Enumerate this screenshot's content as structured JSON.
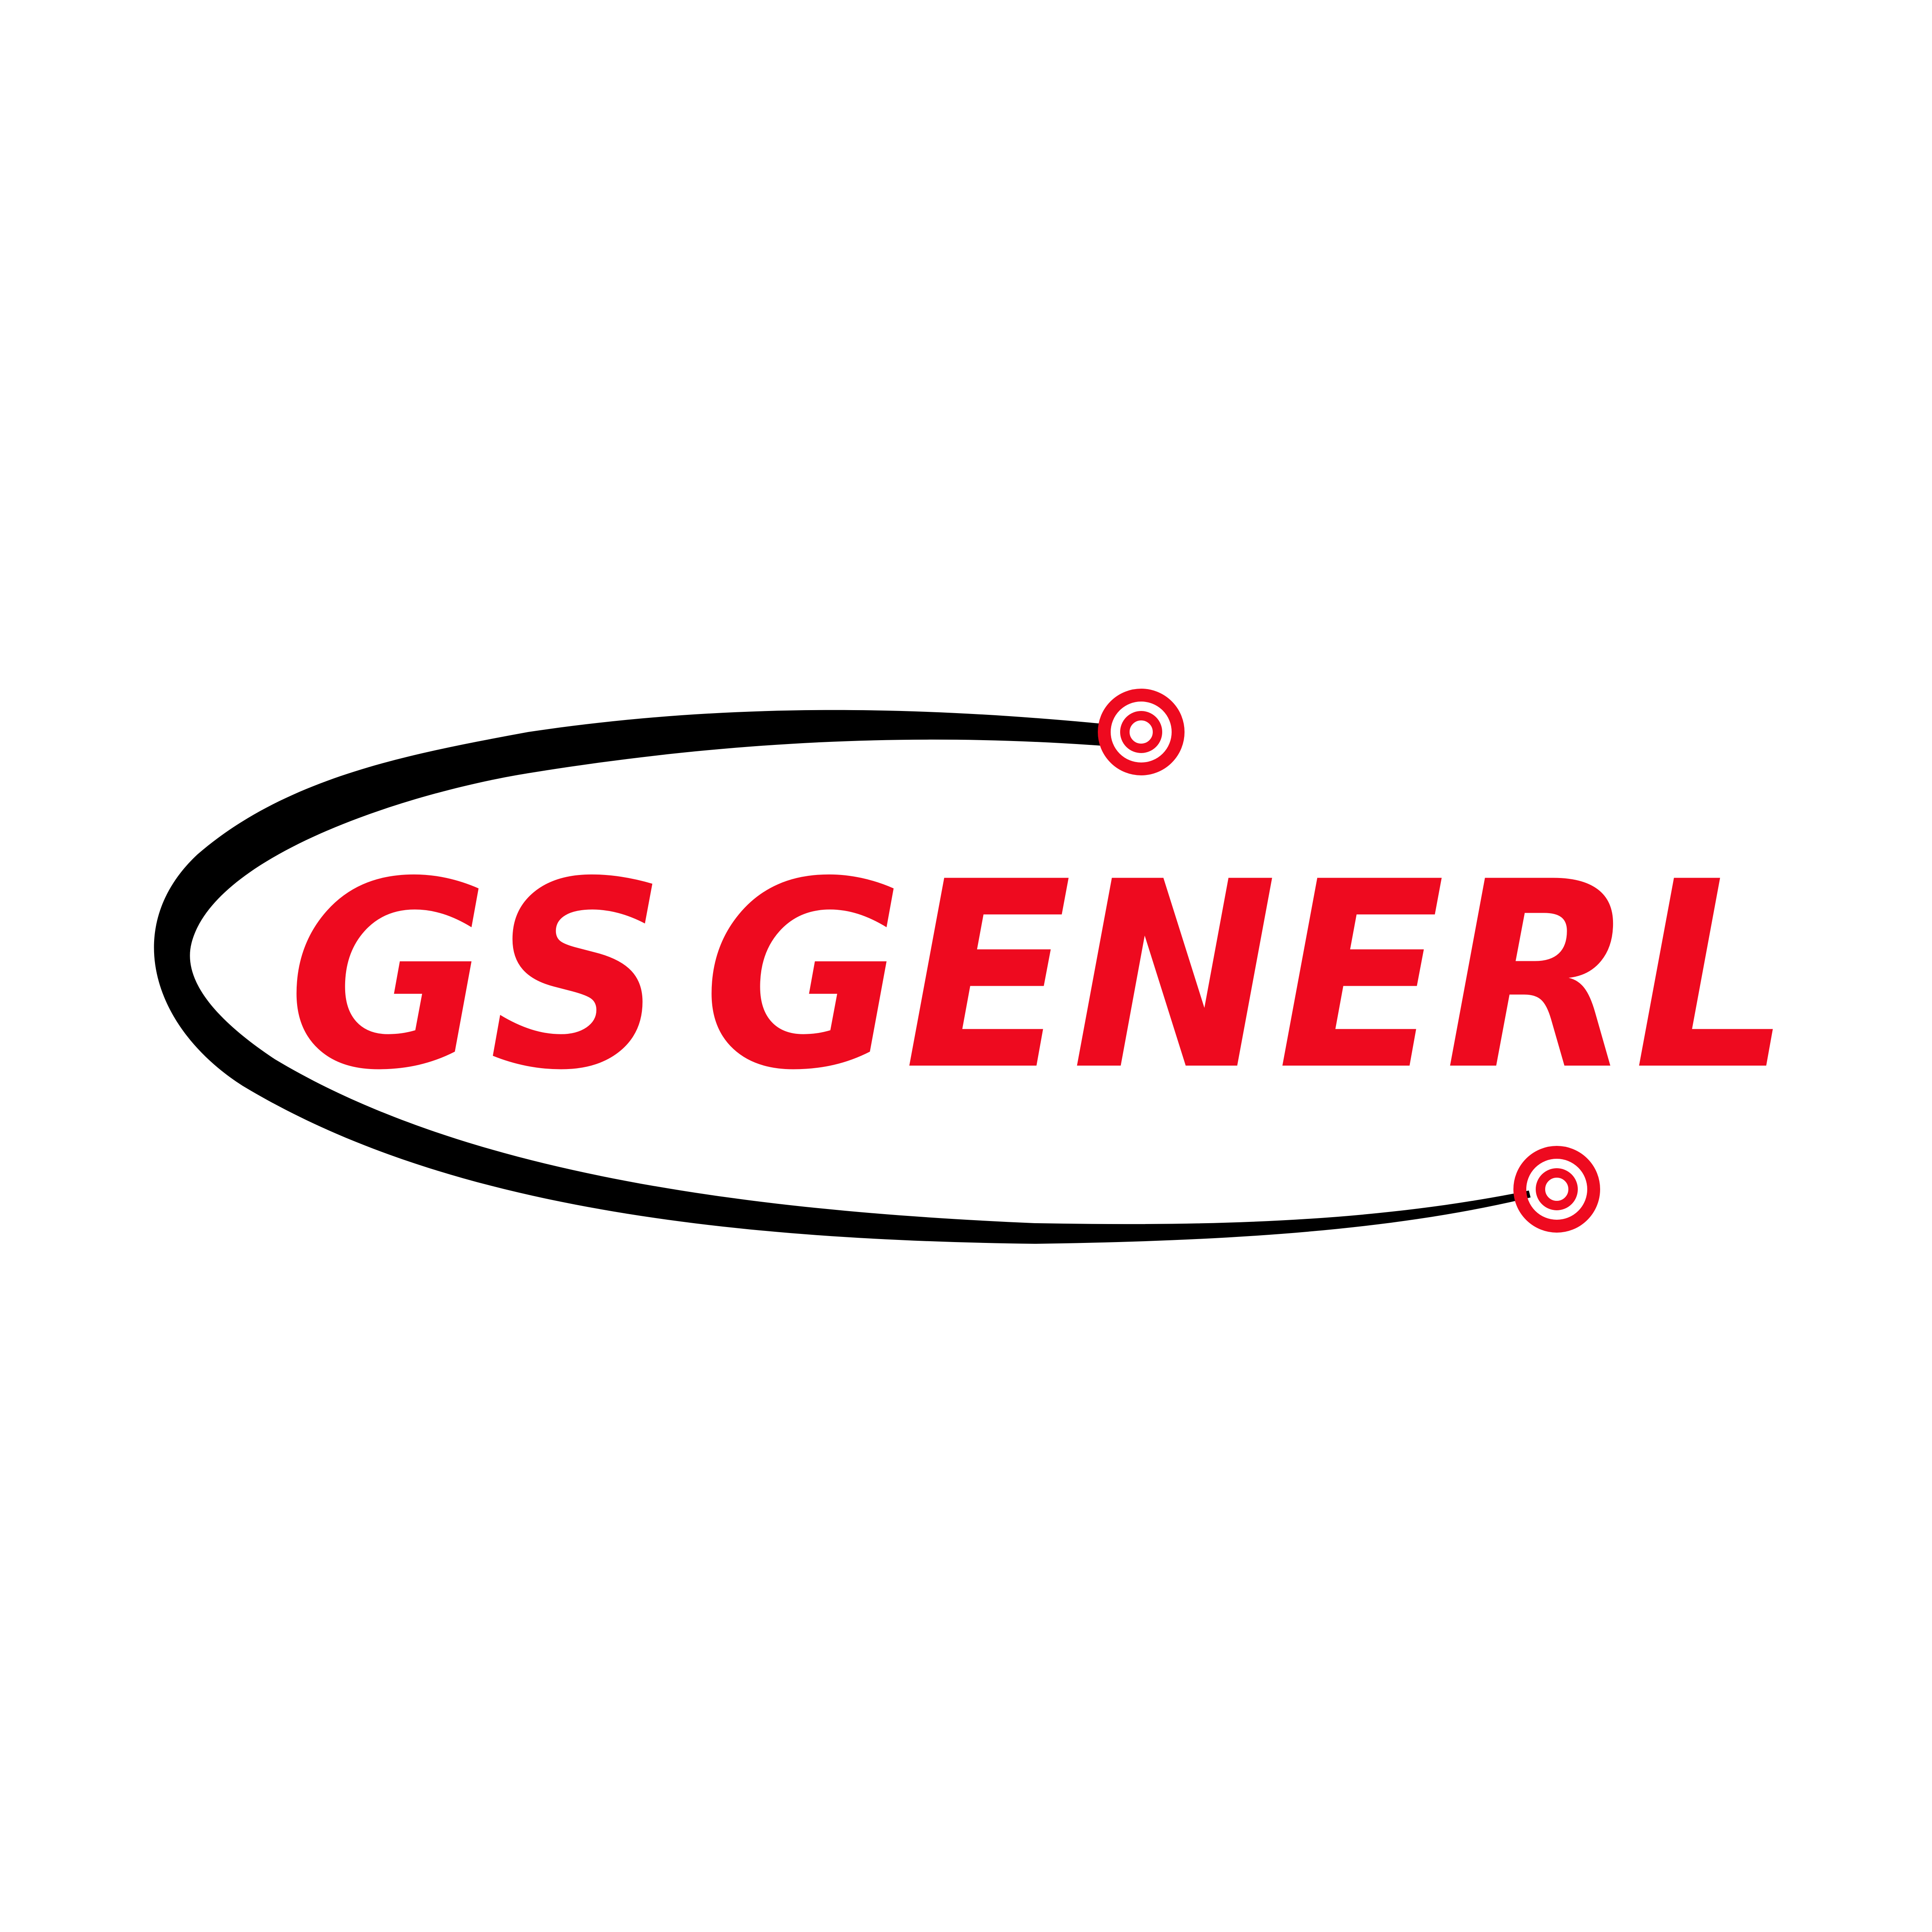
{
  "logo": {
    "brand_name": "GS GENERL",
    "prefix": "GS",
    "word": "GENERL",
    "colors": {
      "brand_red": "#ee0a1f",
      "orbit_black": "#000000",
      "background": "#ffffff"
    },
    "icons": [
      "orbit-swoosh-icon",
      "target-ring-icon",
      "target-ring-icon"
    ]
  }
}
